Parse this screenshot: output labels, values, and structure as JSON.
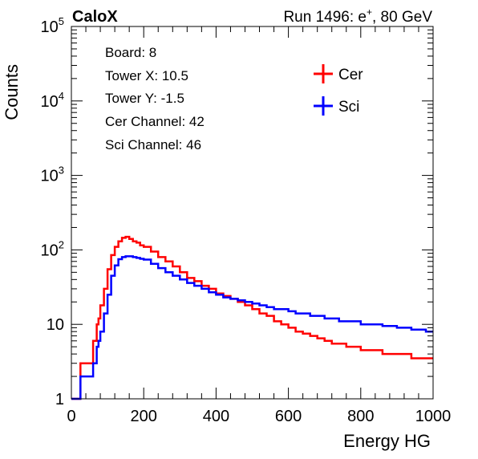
{
  "header": {
    "experiment": "CaloX",
    "run_info": "Run 1496: e",
    "run_sup": "+",
    "run_energy": ", 80 GeV"
  },
  "infobox": {
    "board": "Board: 8",
    "tower_x": "Tower X: 10.5",
    "tower_y": "Tower Y: -1.5",
    "cer_channel": "Cer Channel: 42",
    "sci_channel": "Sci Channel: 46"
  },
  "colors": {
    "cer": "#ff0000",
    "sci": "#0000ff"
  },
  "chart_data": {
    "type": "line",
    "xlabel": "Energy HG",
    "ylabel": "Counts",
    "xlim": [
      0,
      1000
    ],
    "ylim": [
      1,
      100000
    ],
    "y_scale": "log",
    "grid": false,
    "legend_position": "top-right",
    "x_ticks": [
      "0",
      "200",
      "400",
      "600",
      "800",
      "1000"
    ],
    "y_ticks": [
      {
        "base": "1",
        "exp": ""
      },
      {
        "base": "10",
        "exp": ""
      },
      {
        "base": "10",
        "exp": "2"
      },
      {
        "base": "10",
        "exp": "3"
      },
      {
        "base": "10",
        "exp": "4"
      },
      {
        "base": "10",
        "exp": "5"
      }
    ],
    "series": [
      {
        "name": "Cer",
        "color": "#ff0000",
        "x": [
          0,
          25,
          50,
          60,
          70,
          75,
          80,
          90,
          100,
          110,
          120,
          130,
          140,
          150,
          160,
          170,
          180,
          190,
          200,
          220,
          240,
          260,
          280,
          300,
          320,
          340,
          360,
          380,
          400,
          420,
          440,
          460,
          480,
          500,
          520,
          540,
          560,
          580,
          600,
          620,
          640,
          660,
          680,
          700,
          720,
          740,
          760,
          780,
          800,
          820,
          840,
          860,
          880,
          900,
          920,
          940,
          960,
          980,
          1000
        ],
        "values": [
          1,
          3,
          3,
          6,
          10,
          12,
          18,
          30,
          55,
          85,
          110,
          130,
          145,
          150,
          140,
          130,
          125,
          115,
          110,
          95,
          80,
          70,
          60,
          50,
          42,
          38,
          33,
          30,
          26,
          24,
          22,
          20,
          18,
          16,
          14,
          13,
          11,
          10,
          9,
          8,
          7.5,
          7,
          6.5,
          6,
          5.5,
          5.5,
          5,
          5,
          4.5,
          4.5,
          4.5,
          4,
          4,
          4,
          4,
          3.5,
          3.5,
          3.5,
          3.5
        ]
      },
      {
        "name": "Sci",
        "color": "#0000ff",
        "x": [
          0,
          25,
          50,
          60,
          70,
          75,
          80,
          90,
          100,
          110,
          120,
          130,
          140,
          150,
          160,
          170,
          180,
          190,
          200,
          220,
          240,
          260,
          280,
          300,
          320,
          340,
          360,
          380,
          400,
          420,
          440,
          460,
          480,
          500,
          520,
          540,
          560,
          580,
          600,
          620,
          640,
          660,
          680,
          700,
          720,
          740,
          760,
          780,
          800,
          820,
          840,
          860,
          880,
          900,
          920,
          940,
          960,
          980,
          1000
        ],
        "values": [
          1,
          2,
          2,
          3,
          5,
          6,
          8,
          14,
          25,
          45,
          62,
          75,
          80,
          82,
          82,
          80,
          78,
          76,
          74,
          65,
          57,
          50,
          45,
          40,
          36,
          33,
          30,
          27,
          25,
          23,
          22,
          21,
          20,
          19,
          18,
          17,
          16,
          16,
          15,
          14,
          14,
          13,
          13,
          12,
          12,
          11,
          11,
          11,
          10,
          10,
          10,
          9.5,
          9.5,
          9,
          9,
          8.5,
          8.5,
          8,
          8
        ]
      }
    ]
  }
}
